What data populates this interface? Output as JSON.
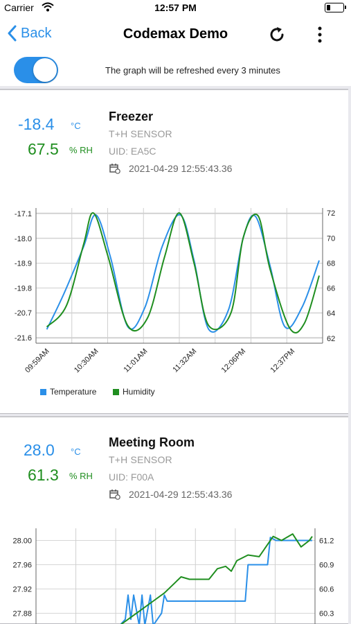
{
  "status_bar": {
    "carrier": "Carrier",
    "time": "12:57 PM"
  },
  "nav": {
    "back_label": "Back",
    "title": "Codemax Demo"
  },
  "refresh_note": "The graph will be refreshed every 3 minutes",
  "toggle": {
    "on": true
  },
  "colors": {
    "accent": "#2a8fe8",
    "temperature": "#2a8fe8",
    "humidity": "#1f8e1f"
  },
  "devices": [
    {
      "name": "Freezer",
      "type": "T+H SENSOR",
      "uid": "UID: EA5C",
      "timestamp": "2021-04-29 12:55:43.36",
      "temperature": "-18.4",
      "temp_unit": "°C",
      "humidity": "67.5",
      "hum_unit": "% RH"
    },
    {
      "name": "Meeting Room",
      "type": "T+H SENSOR",
      "uid": "UID: F00A",
      "timestamp": "2021-04-29 12:55:43.36",
      "temperature": "28.0",
      "temp_unit": "°C",
      "humidity": "61.3",
      "hum_unit": "% RH"
    }
  ],
  "chart_data": [
    {
      "type": "line",
      "title": "",
      "x": [
        "09:59AM",
        "10:30AM",
        "11:01AM",
        "11:32AM",
        "12:06PM",
        "12:37PM"
      ],
      "left_axis": {
        "ticks": [
          -17.1,
          -18.0,
          -18.9,
          -19.8,
          -20.7,
          -21.6
        ],
        "tick_labels": [
          "-17.1",
          "-18.0",
          "-18.9",
          "-19.8",
          "-20.7",
          "-21.6"
        ],
        "range": [
          -21.8,
          -16.9
        ]
      },
      "right_axis": {
        "ticks": [
          72,
          70,
          68,
          66,
          64,
          62
        ],
        "tick_labels": [
          "72",
          "70",
          "68",
          "66",
          "64",
          "62"
        ],
        "range": [
          61.6,
          72.4
        ]
      },
      "legend": {
        "placement": "bottom-left",
        "entries": [
          "Temperature",
          "Humidity"
        ]
      },
      "grid": true,
      "series": [
        {
          "name": "Temperature",
          "axis": "left",
          "points": [
            [
              0,
              -21.3
            ],
            [
              0.35,
              -20.0
            ],
            [
              0.75,
              -18.3
            ],
            [
              1.0,
              -17.15
            ],
            [
              1.3,
              -18.7
            ],
            [
              1.65,
              -21.2
            ],
            [
              2.0,
              -20.5
            ],
            [
              2.35,
              -18.3
            ],
            [
              2.72,
              -17.15
            ],
            [
              3.0,
              -18.8
            ],
            [
              3.3,
              -21.3
            ],
            [
              3.7,
              -20.6
            ],
            [
              4.0,
              -18.0
            ],
            [
              4.25,
              -17.2
            ],
            [
              4.55,
              -19.0
            ],
            [
              4.85,
              -21.2
            ],
            [
              5.2,
              -20.5
            ],
            [
              5.55,
              -18.8
            ]
          ]
        },
        {
          "name": "Humidity",
          "axis": "right",
          "points": [
            [
              0,
              62.9
            ],
            [
              0.4,
              64.6
            ],
            [
              0.75,
              69.5
            ],
            [
              0.95,
              72.0
            ],
            [
              1.25,
              68.5
            ],
            [
              1.65,
              63.0
            ],
            [
              2.05,
              63.6
            ],
            [
              2.4,
              68.5
            ],
            [
              2.7,
              72.0
            ],
            [
              3.0,
              68.0
            ],
            [
              3.3,
              63.0
            ],
            [
              3.75,
              64.0
            ],
            [
              4.0,
              70.0
            ],
            [
              4.3,
              71.8
            ],
            [
              4.55,
              67.5
            ],
            [
              4.95,
              62.8
            ],
            [
              5.25,
              63.2
            ],
            [
              5.55,
              67.0
            ]
          ]
        }
      ]
    },
    {
      "type": "line",
      "title": "",
      "left_axis": {
        "ticks": [
          28.0,
          27.96,
          27.92,
          27.88
        ],
        "tick_labels": [
          "28.00",
          "27.96",
          "27.92",
          "27.88"
        ],
        "range": [
          27.86,
          28.02
        ]
      },
      "right_axis": {
        "ticks": [
          61.2,
          60.9,
          60.6,
          60.3
        ],
        "tick_labels": [
          "61.2",
          "60.9",
          "60.6",
          "60.3"
        ],
        "range": [
          60.15,
          61.35
        ]
      },
      "grid": true,
      "series": [
        {
          "name": "Temperature",
          "axis": "left",
          "points": [
            [
              0.3,
              27.86
            ],
            [
              0.32,
              27.87
            ],
            [
              0.33,
              27.91
            ],
            [
              0.34,
              27.87
            ],
            [
              0.35,
              27.91
            ],
            [
              0.37,
              27.86
            ],
            [
              0.38,
              27.91
            ],
            [
              0.39,
              27.86
            ],
            [
              0.41,
              27.91
            ],
            [
              0.42,
              27.86
            ],
            [
              0.45,
              27.88
            ],
            [
              0.46,
              27.91
            ],
            [
              0.47,
              27.9
            ],
            [
              0.55,
              27.9
            ],
            [
              0.75,
              27.9
            ],
            [
              0.76,
              27.96
            ],
            [
              0.83,
              27.96
            ],
            [
              0.84,
              28.005
            ],
            [
              0.86,
              28.0
            ],
            [
              0.99,
              28.0
            ]
          ]
        },
        {
          "name": "Humidity",
          "axis": "right",
          "points": [
            [
              0.3,
              60.15
            ],
            [
              0.34,
              60.25
            ],
            [
              0.38,
              60.35
            ],
            [
              0.42,
              60.45
            ],
            [
              0.46,
              60.55
            ],
            [
              0.49,
              60.65
            ],
            [
              0.52,
              60.75
            ],
            [
              0.55,
              60.72
            ],
            [
              0.62,
              60.72
            ],
            [
              0.65,
              60.85
            ],
            [
              0.68,
              60.88
            ],
            [
              0.7,
              60.82
            ],
            [
              0.72,
              60.95
            ],
            [
              0.76,
              61.02
            ],
            [
              0.8,
              61.0
            ],
            [
              0.83,
              61.15
            ],
            [
              0.85,
              61.25
            ],
            [
              0.88,
              61.2
            ],
            [
              0.92,
              61.28
            ],
            [
              0.95,
              61.12
            ],
            [
              0.98,
              61.2
            ],
            [
              0.99,
              61.25
            ]
          ]
        }
      ]
    }
  ]
}
